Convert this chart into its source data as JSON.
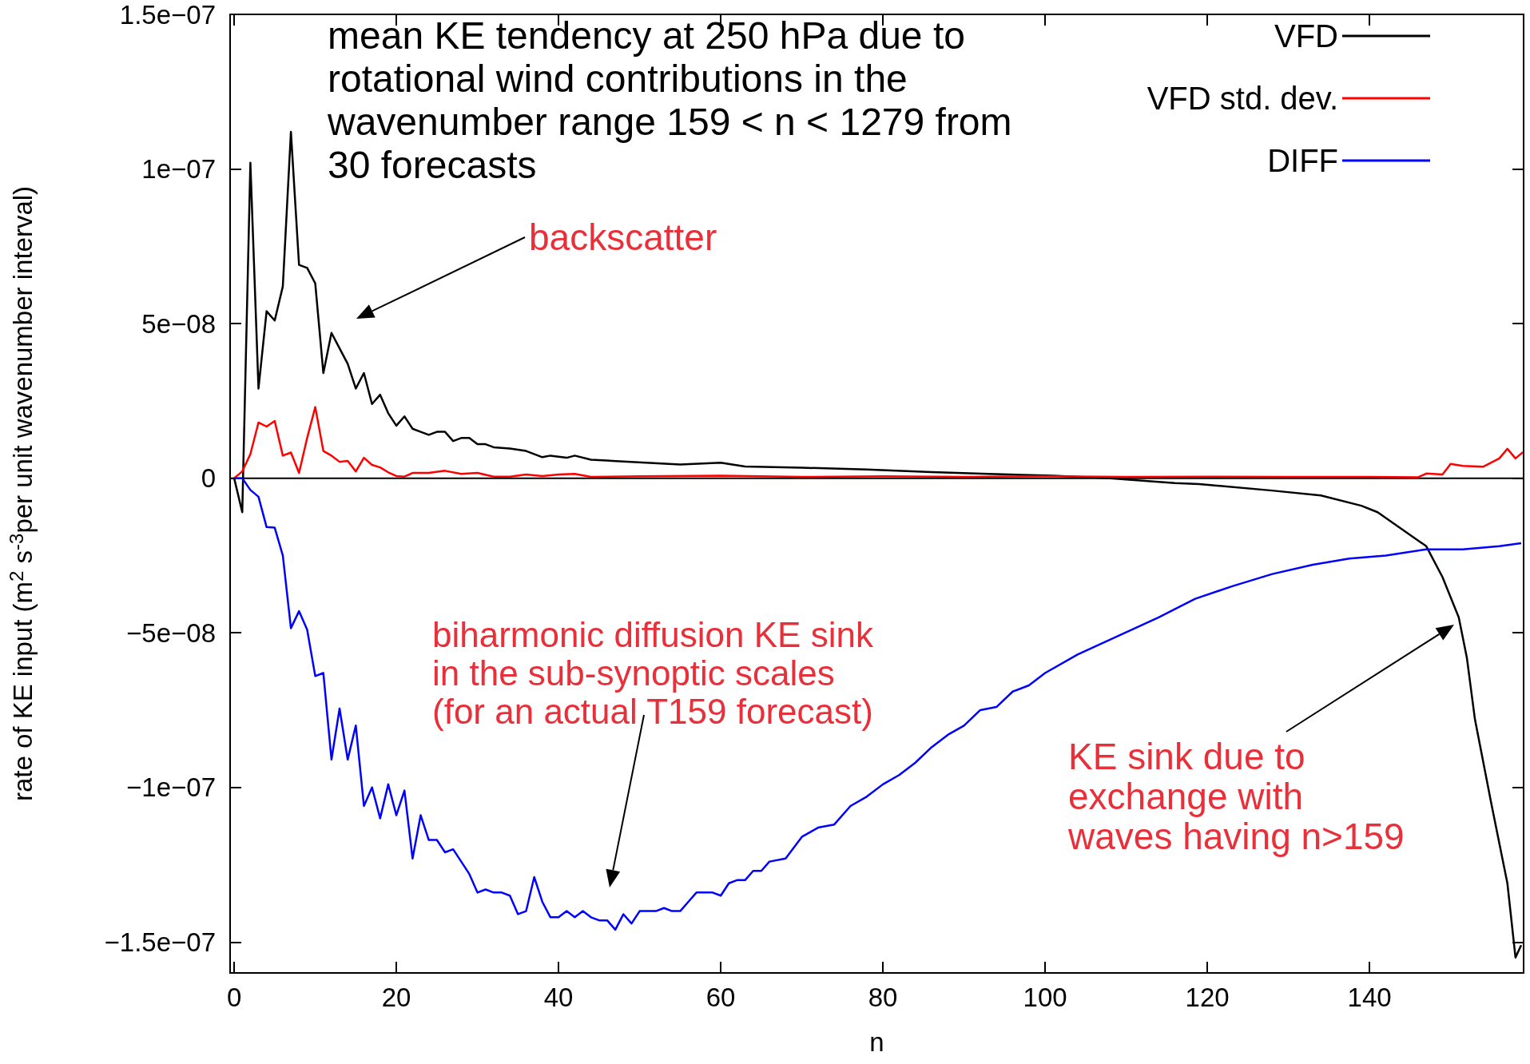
{
  "chart_data": {
    "type": "line",
    "title": "mean KE tendency at 250 hPa due to rotational wind contributions in the wavenumber range 159 < n < 1279 from 30 forecasts",
    "xlabel": "n",
    "ylabel": "rate of KE input (m$^{2}$ s$^{-3}$per unit wavenumber interval)",
    "xlim": [
      -0.5,
      159
    ],
    "xticks": [
      0,
      20,
      40,
      60,
      80,
      100,
      120,
      140
    ],
    "ylim": [
      -1.6e-07,
      1.5e-07
    ],
    "yticks": [
      {
        "value": -1.5e-07,
        "label": "−1.5e−07"
      },
      {
        "value": -1e-07,
        "label": "−1e−07"
      },
      {
        "value": -5e-08,
        "label": "−5e−08"
      },
      0,
      {
        "value": 5e-08,
        "label": "5e−08"
      },
      {
        "value": 1e-07,
        "label": "1e−07"
      },
      {
        "value": 1.5e-07,
        "label": "1.5e−07"
      }
    ],
    "grid": false,
    "legend": "top right",
    "marker": "none",
    "line_style": "solid",
    "ref_lines": [
      {
        "axis": "y",
        "value": 0,
        "color": "#000000"
      }
    ],
    "series": [
      {
        "name": "VFD",
        "color": "#000000",
        "x": [
          0,
          1,
          2,
          3,
          4,
          5,
          6,
          7,
          8,
          9,
          10,
          11,
          12,
          13,
          14,
          15,
          16,
          17,
          18,
          19,
          20,
          21,
          22,
          23,
          24,
          25,
          26,
          27,
          28,
          29,
          30,
          31,
          32,
          34,
          36,
          38,
          39,
          41,
          42,
          44,
          48,
          55,
          60,
          63,
          70,
          78,
          86,
          93,
          101,
          108,
          116,
          119,
          128,
          134,
          139,
          141,
          147,
          149,
          151,
          152,
          153,
          155,
          157,
          158,
          158.7
        ],
        "values": [
          0,
          -1.1e-08,
          1.02e-07,
          2.9e-08,
          5.4e-08,
          5.1e-08,
          6.2e-08,
          1.12e-07,
          6.9e-08,
          6.8e-08,
          6.3e-08,
          3.4e-08,
          4.7e-08,
          4.2e-08,
          3.7e-08,
          2.9e-08,
          3.4e-08,
          2.4e-08,
          2.7e-08,
          2.1e-08,
          1.7e-08,
          2e-08,
          1.6e-08,
          1.5e-08,
          1.4e-08,
          1.5e-08,
          1.5e-08,
          1.2e-08,
          1.3e-08,
          1.3e-08,
          1.1e-08,
          1.1e-08,
          1e-08,
          9.6e-09,
          8.8e-09,
          6.8e-09,
          7.3e-09,
          6.6e-09,
          7.3e-09,
          6e-09,
          5.4e-09,
          4.4e-09,
          5e-09,
          3.8e-09,
          3.4e-09,
          2.8e-09,
          2e-09,
          1.4e-09,
          8e-10,
          0,
          -1.6e-09,
          -1.9e-09,
          -4e-09,
          -5.6e-09,
          -8.9e-09,
          -1.1e-08,
          -2.2e-08,
          -3.2e-08,
          -4.5e-08,
          -5.8e-08,
          -7.8e-08,
          -1.05e-07,
          -1.31e-07,
          -1.55e-07,
          -1.51e-07
        ]
      },
      {
        "name": "VFD std. dev.",
        "color": "#ff0000",
        "x": [
          0,
          1,
          2,
          3,
          4,
          5,
          6,
          7,
          8,
          9,
          10,
          11,
          12,
          13,
          14,
          15,
          16,
          17,
          18,
          19,
          20,
          21,
          22,
          24,
          26,
          28,
          30,
          32,
          34,
          36,
          38,
          40,
          42,
          44,
          50,
          60,
          70,
          80,
          90,
          100,
          110,
          120,
          130,
          140,
          146,
          147,
          149,
          150,
          151.5,
          154,
          156,
          157,
          158,
          158.9
        ],
        "values": [
          0,
          2.2e-09,
          7.8e-09,
          1.8e-08,
          1.67e-08,
          1.85e-08,
          7.3e-09,
          8.3e-09,
          1.7e-09,
          1.3e-08,
          2.3e-08,
          8.8e-09,
          7.3e-09,
          5.3e-09,
          5.6e-09,
          2.2e-09,
          6.6e-09,
          4.3e-09,
          3.5e-09,
          1.9e-09,
          7e-10,
          5e-10,
          1.7e-09,
          1.7e-09,
          2.4e-09,
          1.4e-09,
          1.7e-09,
          5e-10,
          5e-10,
          1.2e-09,
          7e-10,
          1.2e-09,
          1.4e-09,
          4e-10,
          6e-10,
          8e-10,
          4e-10,
          6e-10,
          4e-10,
          6e-10,
          4e-10,
          5e-10,
          4e-10,
          4e-10,
          3e-10,
          1.5e-09,
          1.2e-09,
          4.6e-09,
          4e-09,
          3.7e-09,
          6.4e-09,
          9.5e-09,
          6.4e-09,
          8.4e-09
        ]
      },
      {
        "name": "DIFF",
        "color": "#0000ff",
        "x": [
          0,
          1,
          2,
          3,
          4,
          5,
          6,
          7,
          8,
          9,
          10,
          11,
          12,
          13,
          14,
          15,
          16,
          17,
          18,
          19,
          20,
          21,
          22,
          23,
          24,
          25,
          26,
          27,
          28,
          29,
          30,
          31,
          32,
          33,
          34,
          35,
          36,
          37,
          38,
          39,
          40,
          41,
          42,
          43,
          44,
          45,
          46,
          47,
          48,
          49,
          50,
          51,
          52,
          53,
          54,
          55,
          56,
          57,
          58,
          59,
          60,
          61,
          62,
          63,
          64,
          65,
          66,
          68,
          70,
          72,
          74,
          76,
          78,
          80,
          82,
          84,
          86,
          88,
          90,
          92,
          94,
          96,
          98,
          100,
          104,
          109,
          114,
          118.5,
          123,
          128,
          133,
          137.5,
          142,
          147,
          151.5,
          156,
          158.7
        ],
        "values": [
          0,
          0,
          -3.8e-09,
          -6e-09,
          -1.58e-08,
          -1.6e-08,
          -2.5e-08,
          -4.85e-08,
          -4.3e-08,
          -4.9e-08,
          -6.4e-08,
          -6.3e-08,
          -9.1e-08,
          -7.45e-08,
          -9.1e-08,
          -8e-08,
          -1.06e-07,
          -1e-07,
          -1.1e-07,
          -9.9e-08,
          -1.09e-07,
          -1.01e-07,
          -1.23e-07,
          -1.09e-07,
          -1.17e-07,
          -1.17e-07,
          -1.21e-07,
          -1.2e-07,
          -1.24e-07,
          -1.28e-07,
          -1.34e-07,
          -1.33e-07,
          -1.34e-07,
          -1.34e-07,
          -1.35e-07,
          -1.41e-07,
          -1.4e-07,
          -1.29e-07,
          -1.37e-07,
          -1.42e-07,
          -1.42e-07,
          -1.4e-07,
          -1.42e-07,
          -1.4e-07,
          -1.42e-07,
          -1.43e-07,
          -1.43e-07,
          -1.46e-07,
          -1.41e-07,
          -1.44e-07,
          -1.4e-07,
          -1.4e-07,
          -1.4e-07,
          -1.39e-07,
          -1.4e-07,
          -1.4e-07,
          -1.37e-07,
          -1.34e-07,
          -1.34e-07,
          -1.34e-07,
          -1.35e-07,
          -1.31e-07,
          -1.3e-07,
          -1.3e-07,
          -1.27e-07,
          -1.27e-07,
          -1.24e-07,
          -1.23e-07,
          -1.16e-07,
          -1.13e-07,
          -1.12e-07,
          -1.06e-07,
          -1.03e-07,
          -9.9e-08,
          -9.6e-08,
          -9.2e-08,
          -8.7e-08,
          -8.3e-08,
          -8e-08,
          -7.5e-08,
          -7.4e-08,
          -6.9e-08,
          -6.7e-08,
          -6.3e-08,
          -5.7e-08,
          -5.1e-08,
          -4.5e-08,
          -3.9e-08,
          -3.5e-08,
          -3.1e-08,
          -2.8e-08,
          -2.6e-08,
          -2.5e-08,
          -2.3e-08,
          -2.3e-08,
          -2.2e-08,
          -2.1e-08
        ]
      }
    ],
    "annotations": [
      "backscatter",
      "biharmonic diffusion KE sink in the sub-synoptic scales (for an actual T159 forecast)",
      "KE sink due to exchange with waves having n>159"
    ]
  }
}
